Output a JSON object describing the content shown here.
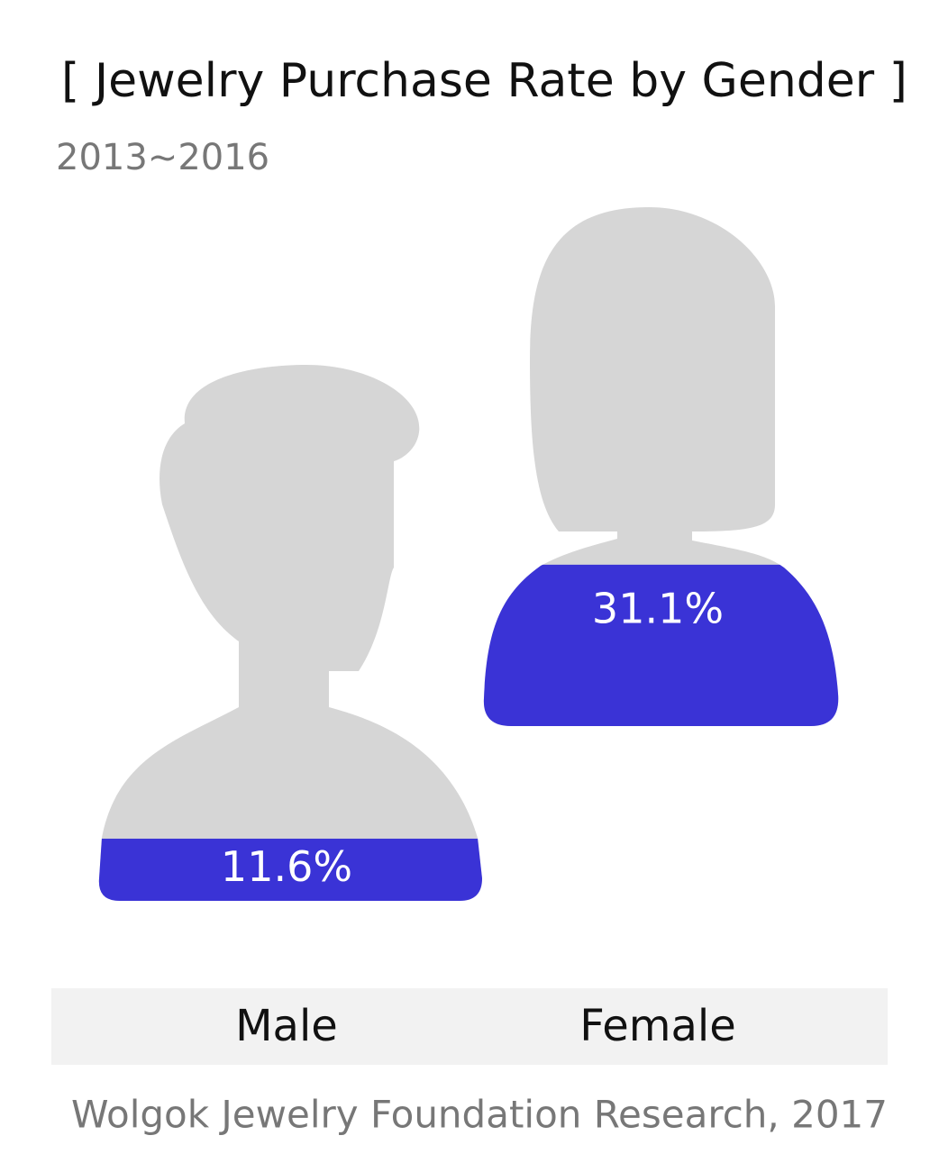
{
  "chart_data": {
    "type": "pictogram",
    "title": "[ Jewelry Purchase Rate by Gender ]",
    "subtitle": "2013~2016",
    "categories": [
      "Male",
      "Female"
    ],
    "values": [
      11.6,
      31.1
    ],
    "value_labels": [
      "11.6%",
      "31.1%"
    ],
    "color": "#3a33d6",
    "base_color": "#d6d6d6",
    "source": "Wolgok Jewelry Foundation Research, 2017"
  }
}
